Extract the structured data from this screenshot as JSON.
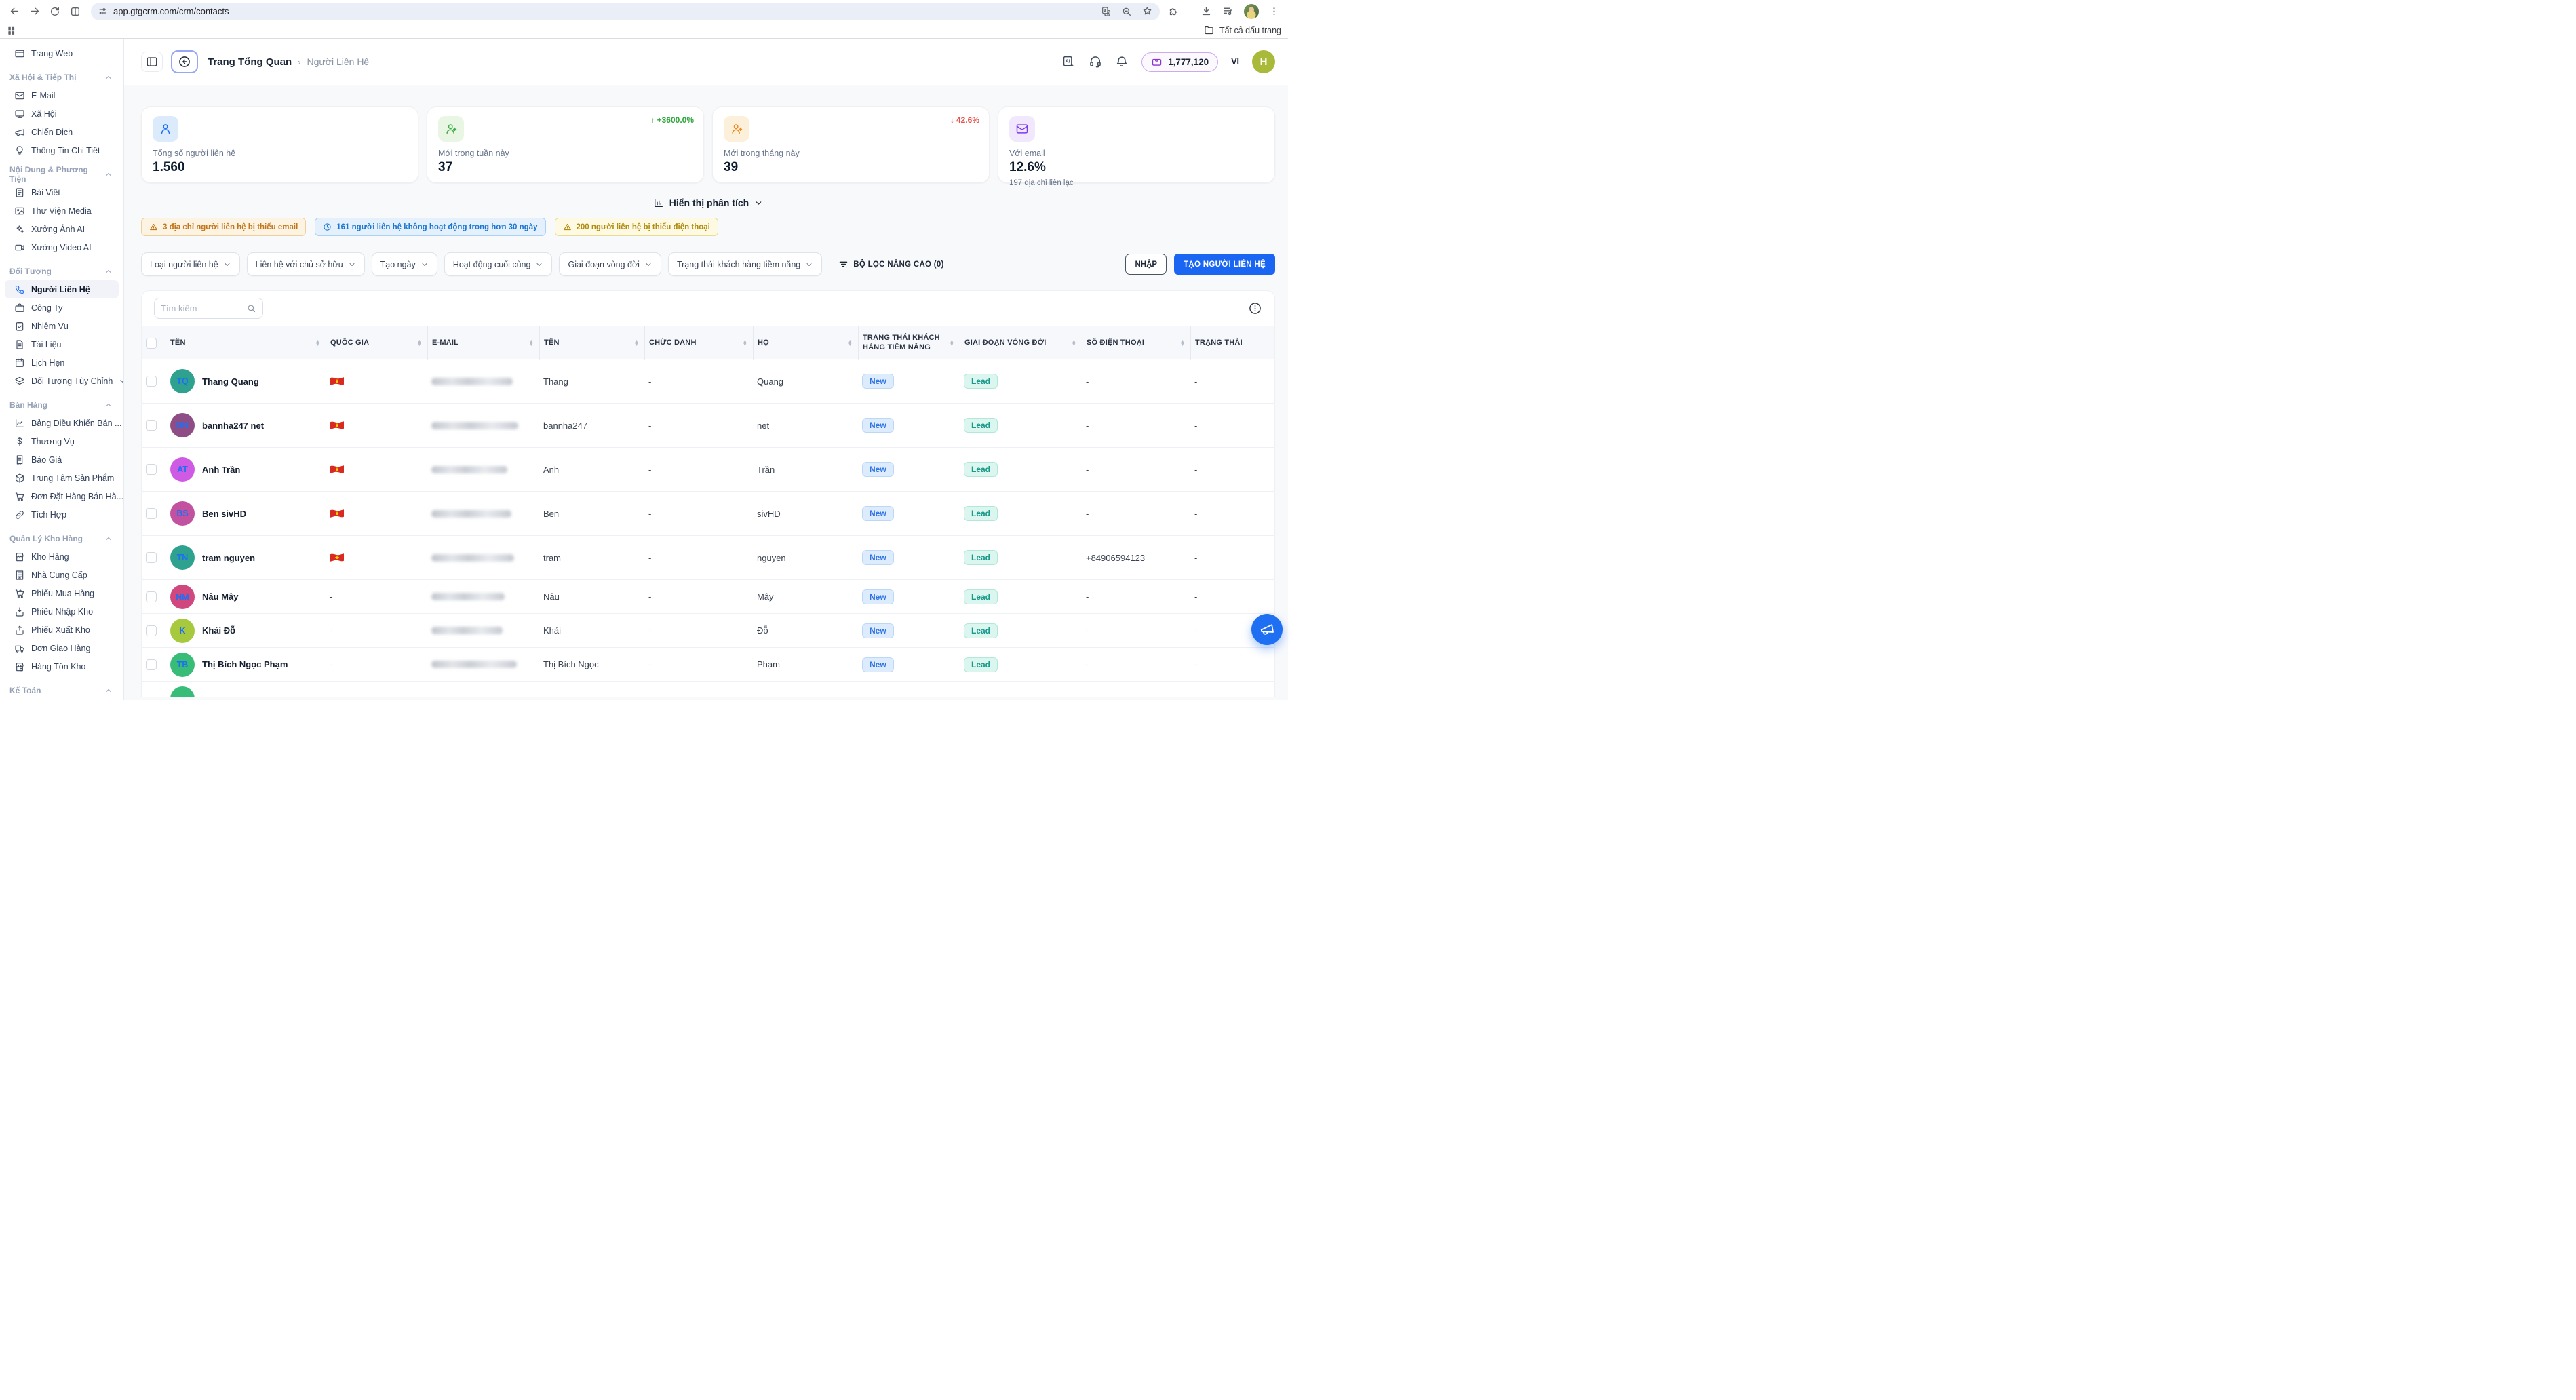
{
  "browser": {
    "url": "app.gtgcrm.com/crm/contacts",
    "bookmarks_label": "Tất cả dấu trang"
  },
  "header": {
    "breadcrumb_primary": "Trang Tổng Quan",
    "breadcrumb_current": "Người Liên Hệ",
    "credits": "1,777,120",
    "language": "VI",
    "avatar_initial": "H"
  },
  "sidebar": {
    "groups": [
      {
        "title": "",
        "items": [
          {
            "label": "Trang Web",
            "icon": "browser-window-icon"
          }
        ]
      },
      {
        "title": "Xã Hội & Tiếp Thị",
        "items": [
          {
            "label": "E-Mail",
            "icon": "mail-icon"
          },
          {
            "label": "Xã Hội",
            "icon": "monitor-icon"
          },
          {
            "label": "Chiến Dịch",
            "icon": "megaphone-icon"
          },
          {
            "label": "Thông Tin Chi Tiết",
            "icon": "lightbulb-icon"
          }
        ]
      },
      {
        "title": "Nội Dung & Phương Tiện",
        "items": [
          {
            "label": "Bài Viết",
            "icon": "article-icon"
          },
          {
            "label": "Thư Viện Media",
            "icon": "image-icon"
          },
          {
            "label": "Xưởng Ảnh AI",
            "icon": "sparkles-icon"
          },
          {
            "label": "Xưởng Video AI",
            "icon": "video-icon"
          }
        ]
      },
      {
        "title": "Đối Tượng",
        "items": [
          {
            "label": "Người Liên Hệ",
            "icon": "phone-icon",
            "active": true
          },
          {
            "label": "Công Ty",
            "icon": "briefcase-icon"
          },
          {
            "label": "Nhiệm Vụ",
            "icon": "clipboard-check-icon"
          },
          {
            "label": "Tài Liệu",
            "icon": "file-text-icon"
          },
          {
            "label": "Lịch Hẹn",
            "icon": "calendar-icon"
          },
          {
            "label": "Đối Tượng Tùy Chỉnh",
            "icon": "layers-icon",
            "trailing": "chevron-down"
          }
        ]
      },
      {
        "title": "Bán Hàng",
        "items": [
          {
            "label": "Bảng Điều Khiển Bán ...",
            "icon": "chart-line-icon"
          },
          {
            "label": "Thương Vụ",
            "icon": "dollar-icon"
          },
          {
            "label": "Báo Giá",
            "icon": "receipt-icon"
          },
          {
            "label": "Trung Tâm Sản Phẩm",
            "icon": "package-icon"
          },
          {
            "label": "Đơn Đặt Hàng Bán Hà...",
            "icon": "cart-icon"
          },
          {
            "label": "Tích Hợp",
            "icon": "link-icon"
          }
        ]
      },
      {
        "title": "Quản Lý Kho Hàng",
        "items": [
          {
            "label": "Kho Hàng",
            "icon": "store-icon"
          },
          {
            "label": "Nhà Cung Cấp",
            "icon": "building-icon"
          },
          {
            "label": "Phiếu Mua Hàng",
            "icon": "cart-plus-icon"
          },
          {
            "label": "Phiếu Nhập Kho",
            "icon": "import-icon"
          },
          {
            "label": "Phiếu Xuất Kho",
            "icon": "export-icon"
          },
          {
            "label": "Đơn Giao Hàng",
            "icon": "truck-icon"
          },
          {
            "label": "Hàng Tồn Kho",
            "icon": "warehouse-icon"
          }
        ]
      },
      {
        "title": "Kế Toán",
        "items": []
      }
    ]
  },
  "stats": [
    {
      "label": "Tổng số người liên hệ",
      "value": "1.560",
      "icon": "user-icon",
      "icon_color": "#1f6ff2",
      "icon_bg": "#dcebfc"
    },
    {
      "label": "Mới trong tuần này",
      "value": "37",
      "icon": "user-plus-icon",
      "icon_color": "#3fae49",
      "icon_bg": "#e8f6e3",
      "trend": "+3600.0%",
      "trend_dir": "up",
      "trend_color": "#2fa63c"
    },
    {
      "label": "Mới trong tháng này",
      "value": "39",
      "icon": "user-plus-icon",
      "icon_color": "#ef8b1d",
      "icon_bg": "#fdf0da",
      "trend": "42.6%",
      "trend_dir": "down",
      "trend_color": "#e8514a"
    },
    {
      "label": "Với email",
      "value": "12.6%",
      "icon": "mail-icon",
      "icon_color": "#7c3aed",
      "icon_bg": "#f1e8fd",
      "sub": "197 địa chỉ liên lạc"
    }
  ],
  "analytics_toggle": {
    "label": "Hiển thị phân tích"
  },
  "alerts": [
    {
      "icon": "warning-icon",
      "text": "3 địa chỉ người liên hệ bị thiếu email",
      "bg": "#fdf3e2",
      "border": "#f1cf9a",
      "color": "#c2761b"
    },
    {
      "icon": "clock-icon",
      "text": "161 người liên hệ không hoạt động trong hơn 30 ngày",
      "bg": "#e4f1fd",
      "border": "#a9d2f5",
      "color": "#1d76d2"
    },
    {
      "icon": "warning-icon",
      "text": "200 người liên hệ bị thiếu điện thoại",
      "bg": "#fdf9e3",
      "border": "#ecdc92",
      "color": "#b08c0e"
    }
  ],
  "filters": {
    "dropdowns": [
      "Loại người liên hệ",
      "Liên hệ với chủ sở hữu",
      "Tạo ngày",
      "Hoạt động cuối cùng",
      "Giai đoạn vòng đời",
      "Trạng thái khách hàng tiềm năng"
    ],
    "advanced_label": "BỘ LỌC NÂNG CAO (0)",
    "import_label": "NHẬP",
    "create_label": "TẠO NGƯỜI LIÊN HỆ"
  },
  "table": {
    "search_placeholder": "Tìm kiếm",
    "columns": [
      "TÊN",
      "QUỐC GIA",
      "E-MAIL",
      "TÊN",
      "CHỨC DANH",
      "HỌ",
      "TRẠNG THÁI KHÁCH HÀNG TIỀM NĂNG",
      "GIAI ĐOẠN VÒNG ĐỜI",
      "SỐ ĐIỆN THOẠI",
      "TRẠNG THÁI"
    ],
    "badges": {
      "new": {
        "label": "New",
        "bg": "#dcecfd",
        "border": "#bcd8f9",
        "color": "#2f72e4"
      },
      "lead": {
        "label": "Lead",
        "bg": "#dbf6ef",
        "border": "#b2e8da",
        "color": "#18998b"
      }
    },
    "rows": [
      {
        "initials": "TQ",
        "avatar": "#2ea28e",
        "name": "Thang Quang",
        "country": "vn",
        "email_masked": true,
        "email_w": 120,
        "first": "Thang",
        "title": "-",
        "last": "Quang",
        "lead": "New",
        "lifecycle": "Lead",
        "phone": "-",
        "status": "-"
      },
      {
        "initials": "BN",
        "avatar": "#8f4d86",
        "name": "bannha247 net",
        "country": "vn",
        "email_masked": true,
        "email_w": 128,
        "first": "bannha247",
        "title": "-",
        "last": "net",
        "lead": "New",
        "lifecycle": "Lead",
        "phone": "-",
        "status": "-"
      },
      {
        "initials": "AT",
        "avatar": "#cf5be4",
        "name": "Anh Trần",
        "country": "vn",
        "email_masked": true,
        "email_w": 112,
        "first": "Anh",
        "title": "-",
        "last": "Trần",
        "lead": "New",
        "lifecycle": "Lead",
        "phone": "-",
        "status": "-"
      },
      {
        "initials": "BS",
        "avatar": "#c2519f",
        "name": "Ben sivHD",
        "country": "vn",
        "email_masked": true,
        "email_w": 118,
        "first": "Ben",
        "title": "-",
        "last": "sivHD",
        "lead": "New",
        "lifecycle": "Lead",
        "phone": "-",
        "status": "-"
      },
      {
        "initials": "TN",
        "avatar": "#2ea28e",
        "name": "tram nguyen",
        "country": "vn",
        "email_masked": true,
        "email_w": 122,
        "first": "tram",
        "title": "-",
        "last": "nguyen",
        "lead": "New",
        "lifecycle": "Lead",
        "phone": "+84906594123",
        "status": "-"
      },
      {
        "initials": "NM",
        "avatar": "#d1487f",
        "name": "Nâu Mây",
        "country": "-",
        "email_masked": true,
        "email_w": 108,
        "first": "Nâu",
        "title": "-",
        "last": "Mây",
        "lead": "New",
        "lifecycle": "Lead",
        "phone": "-",
        "status": "-"
      },
      {
        "initials": "K",
        "avatar": "#a6c93d",
        "name": "Khải Đỗ",
        "country": "-",
        "email_masked": true,
        "email_w": 105,
        "first": "Khải",
        "title": "-",
        "last": "Đỗ",
        "lead": "New",
        "lifecycle": "Lead",
        "phone": "-",
        "status": "-"
      },
      {
        "initials": "TB",
        "avatar": "#38bd79",
        "name": "Thị Bích Ngọc Phạm",
        "country": "-",
        "email_masked": true,
        "email_w": 126,
        "first": "Thị Bích Ngọc",
        "title": "-",
        "last": "Phạm",
        "lead": "New",
        "lifecycle": "Lead",
        "phone": "-",
        "status": "-"
      },
      {
        "initials": "",
        "avatar": "#38bd79",
        "name": "",
        "partial": true
      }
    ]
  },
  "fab": {
    "color": "#1f6ff2"
  }
}
